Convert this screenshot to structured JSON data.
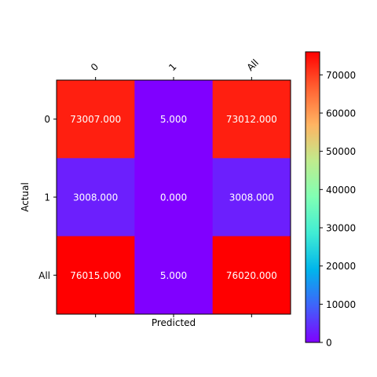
{
  "chart_data": {
    "type": "heatmap",
    "title": "",
    "x_categories": [
      "0",
      "1",
      "All"
    ],
    "y_categories": [
      "0",
      "1",
      "All"
    ],
    "xlabel": "Predicted",
    "ylabel": "Actual",
    "values": [
      [
        73007,
        5,
        73012
      ],
      [
        3008,
        0,
        3008
      ],
      [
        76015,
        5,
        76020
      ]
    ],
    "cell_labels": [
      [
        "73007.000",
        "5.000",
        "73012.000"
      ],
      [
        "3008.000",
        "0.000",
        "3008.000"
      ],
      [
        "76015.000",
        "5.000",
        "76020.000"
      ]
    ],
    "colormap": "rainbow",
    "colorbar": {
      "min": 0,
      "max": 76020,
      "ticks": [
        0,
        10000,
        20000,
        30000,
        40000,
        50000,
        60000,
        70000
      ],
      "tick_labels": [
        "0",
        "10000",
        "20000",
        "30000",
        "40000",
        "50000",
        "60000",
        "70000"
      ]
    },
    "x_tick_position": "top",
    "grid": false
  }
}
